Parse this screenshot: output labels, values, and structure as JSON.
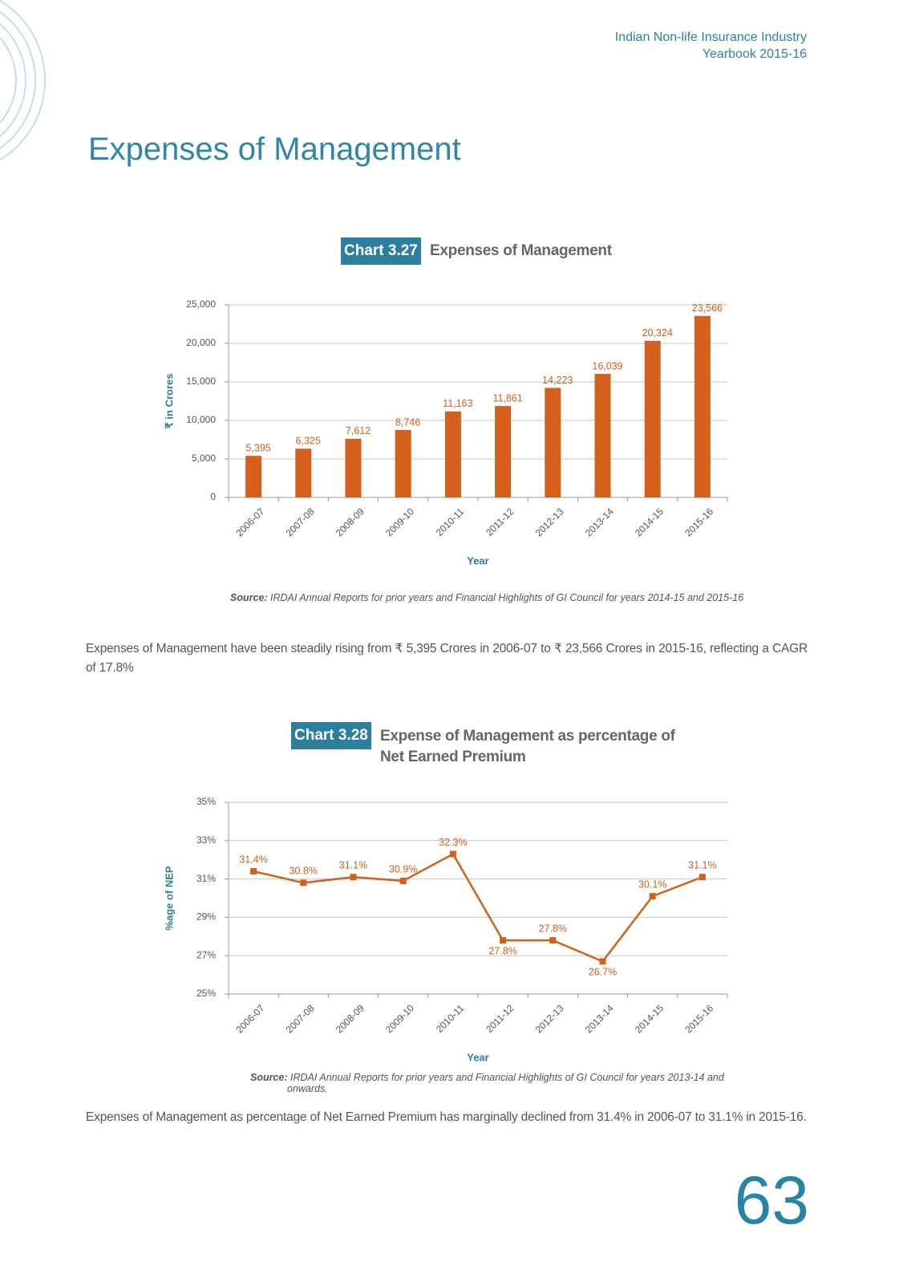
{
  "header": {
    "lines": [
      "Indian Non-life Insurance Industry",
      "Yearbook 2015-16"
    ]
  },
  "title": "Expenses of Management",
  "chart_data": [
    {
      "type": "bar",
      "chart_number": "Chart 3.27",
      "title": "Expenses of Management",
      "categories": [
        "2006-07",
        "2007-08",
        "2008-09",
        "2009-10",
        "2010-11",
        "2011-12",
        "2012-13",
        "2013-14",
        "2014-15",
        "2015-16"
      ],
      "values": [
        5395,
        6325,
        7612,
        8746,
        11163,
        11861,
        14223,
        16039,
        20324,
        23566
      ],
      "value_labels": [
        "5,395",
        "6,325",
        "7,612",
        "8,746",
        "11,163",
        "11,861",
        "14,223",
        "16,039",
        "20,324",
        "23,566"
      ],
      "color": "#d4601c",
      "ylim": [
        0,
        25000
      ],
      "yticks": [
        0,
        {
          "value": 5000,
          "label": "5,000"
        },
        {
          "value": 10000,
          "label": "10,000"
        },
        {
          "value": 15000,
          "label": "15,000"
        },
        {
          "value": 20000,
          "label": "20,000"
        },
        {
          "value": 25000,
          "label": "25,000"
        }
      ],
      "grid": true,
      "xlabel": "Year",
      "ylabel": "₹ in Crores",
      "source_label": "Source:",
      "source": "IRDAI Annual Reports for prior years and Financial Highlights of GI Council for years 2014-15 and 2015-16"
    },
    {
      "type": "line",
      "chart_number": "Chart 3.28",
      "title": "Expense of Management as percentage of Net Earned Premium",
      "categories": [
        "2006-07",
        "2007-08",
        "2008-09",
        "2009-10",
        "2010-11",
        "2011-12",
        "2012-13",
        "2013-14",
        "2014-15",
        "2015-16"
      ],
      "values": [
        31.4,
        30.8,
        31.1,
        30.9,
        32.3,
        27.8,
        27.8,
        26.7,
        30.1,
        31.1
      ],
      "value_labels": [
        "31.4%",
        "30.8%",
        "31.1%",
        "30.9%",
        "32.3%",
        "27.8%",
        "27.8%",
        "26.7%",
        "30.1%",
        "31.1%"
      ],
      "color": "#d4601c",
      "ylim": [
        25,
        35
      ],
      "yticks": [
        {
          "value": 25,
          "label": "25%"
        },
        {
          "value": 27,
          "label": "27%"
        },
        {
          "value": 29,
          "label": "29%"
        },
        {
          "value": 31,
          "label": "31%"
        },
        {
          "value": 33,
          "label": "33%"
        },
        {
          "value": 35,
          "label": "35%"
        }
      ],
      "grid": true,
      "xlabel": "Year",
      "ylabel": "%age of NEP",
      "source_label": "Source:",
      "source": "IRDAI Annual Reports for prior years and Financial Highlights of GI Council for years 2013-14 and onwards."
    }
  ],
  "paragraphs": [
    "Expenses of Management have been steadily rising from ₹ 5,395 Crores in 2006-07 to ₹ 23,566 Crores in 2015-16, reflecting a CAGR of 17.8%",
    "Expenses of Management as percentage of Net Earned Premium has marginally declined from 31.4% in 2006-07 to 31.1% in 2015-16."
  ],
  "page_number": "63"
}
